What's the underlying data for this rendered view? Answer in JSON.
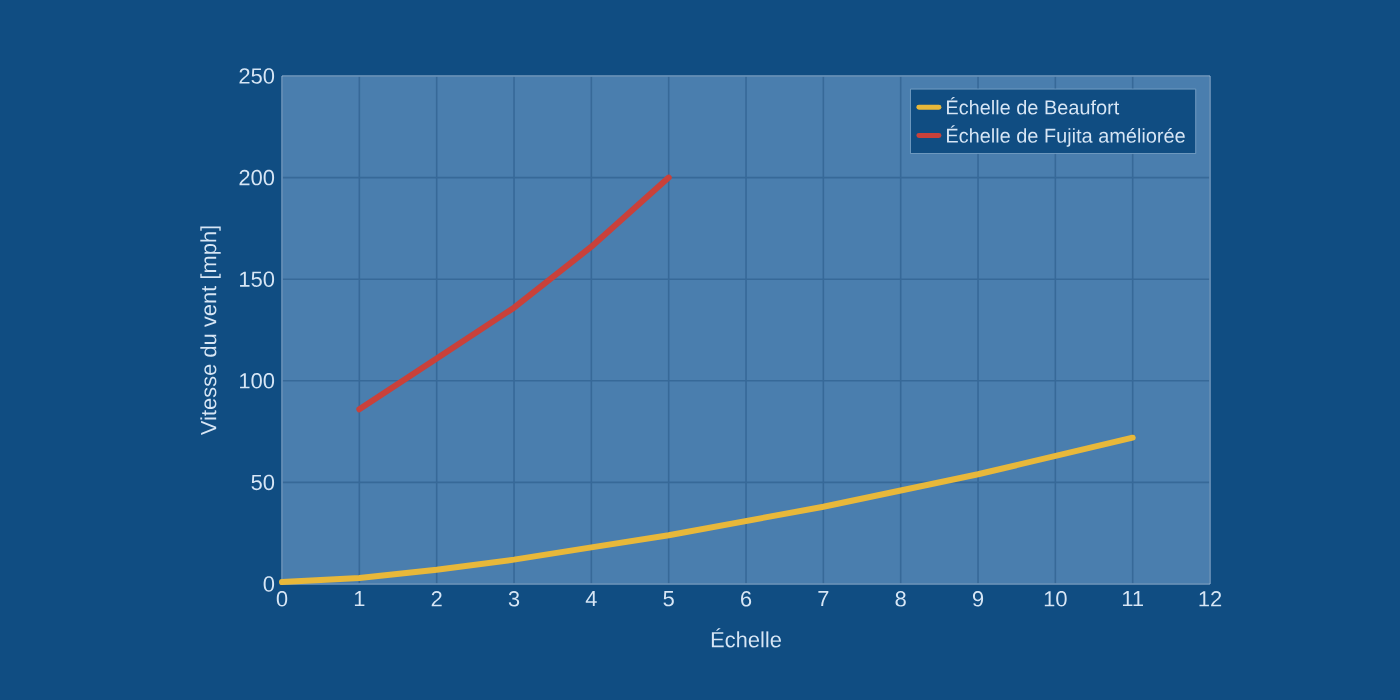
{
  "chart_data": {
    "type": "line",
    "xlabel": "Échelle",
    "ylabel": "Vitesse du vent [mph]",
    "series": [
      {
        "name": "Échelle de Beaufort",
        "color": "#e8b83a",
        "x": [
          0,
          1,
          2,
          3,
          4,
          5,
          6,
          7,
          8,
          9,
          10,
          11
        ],
        "values": [
          1,
          3,
          7,
          12,
          18,
          24,
          31,
          38,
          46,
          54,
          63,
          72
        ]
      },
      {
        "name": "Échelle de Fujita améliorée",
        "color": "#c9413a",
        "x": [
          1,
          2,
          3,
          4,
          5
        ],
        "values": [
          86,
          111,
          136,
          166,
          200
        ]
      }
    ],
    "xlim": [
      0,
      12
    ],
    "ylim": [
      0,
      250
    ],
    "xticks": [
      0,
      1,
      2,
      3,
      4,
      5,
      6,
      7,
      8,
      9,
      10,
      11,
      12
    ],
    "yticks": [
      0,
      50,
      100,
      150,
      200,
      250
    ],
    "grid": true,
    "legend": "top right",
    "marker": "none",
    "line_style": "solid"
  }
}
